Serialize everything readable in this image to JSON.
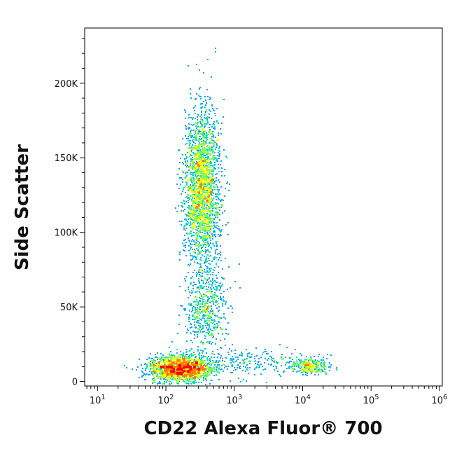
{
  "chart_data": {
    "type": "scatter",
    "title": "",
    "xlabel": "CD22 Alexa Fluor® 700",
    "ylabel": "Side Scatter",
    "x_scale": "log",
    "xlim": [
      6.5,
      1100000
    ],
    "ylim": [
      -3000,
      237000
    ],
    "x_ticks": [
      {
        "value": 10,
        "base": "10",
        "exp": "1"
      },
      {
        "value": 100,
        "base": "10",
        "exp": "2"
      },
      {
        "value": 1000,
        "base": "10",
        "exp": "3"
      },
      {
        "value": 10000,
        "base": "10",
        "exp": "4"
      },
      {
        "value": 100000,
        "base": "10",
        "exp": "5"
      },
      {
        "value": 1000000,
        "base": "10",
        "exp": "6"
      }
    ],
    "y_ticks": [
      {
        "value": 0,
        "label": "0"
      },
      {
        "value": 50000,
        "label": "50K"
      },
      {
        "value": 100000,
        "label": "100K"
      },
      {
        "value": 150000,
        "label": "150K"
      },
      {
        "value": 200000,
        "label": "200K"
      }
    ],
    "density_colormap": [
      "#0000ff",
      "#00a0ff",
      "#00e0c0",
      "#80ff40",
      "#ffff00",
      "#ff8000",
      "#ff0000"
    ],
    "populations": [
      {
        "x": 160,
        "y": 9000,
        "sx": 0.24,
        "sy": 4500,
        "weight": 0.3
      },
      {
        "x": 330,
        "y": 130000,
        "sx": 0.13,
        "sy": 26000,
        "weight": 0.38
      },
      {
        "x": 380,
        "y": 50000,
        "sx": 0.15,
        "sy": 14000,
        "weight": 0.1
      },
      {
        "x": 12000,
        "y": 11000,
        "sx": 0.14,
        "sy": 3000,
        "weight": 0.05
      },
      {
        "x": 1500,
        "y": 14000,
        "sx": 0.45,
        "sy": 5000,
        "weight": 0.04
      }
    ]
  }
}
